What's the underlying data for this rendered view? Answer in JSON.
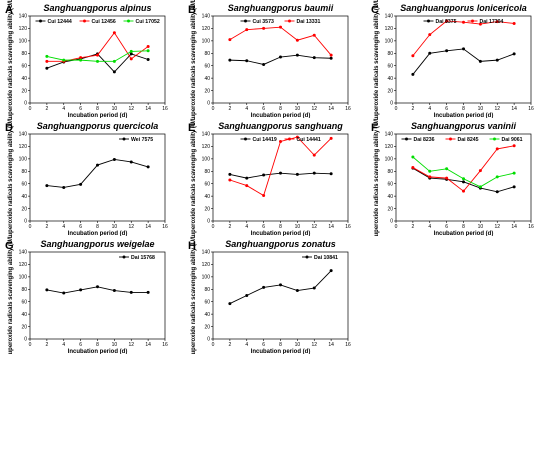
{
  "figure": {
    "background": "#ffffff"
  },
  "chart_data": [
    {
      "type": "line",
      "panel_label": "A",
      "title": "Sanghuangporus alpinus",
      "xlabel": "Incubation period (d)",
      "ylabel": "Superoxide radicals scavenging ability (U/L)",
      "xlim": [
        0,
        16
      ],
      "ylim": [
        0,
        140
      ],
      "xticks": [
        "0",
        "2",
        "4",
        "6",
        "8",
        "10",
        "12",
        "14",
        "16"
      ],
      "yticks": [
        "0",
        "20",
        "40",
        "60",
        "80",
        "100",
        "120",
        "140"
      ],
      "grid": false,
      "legend_position": "top",
      "x": [
        2,
        4,
        6,
        8,
        10,
        12,
        14
      ],
      "series": [
        {
          "name": "Cui 12444",
          "color": "#000000",
          "marker": "circle",
          "values": [
            56,
            66,
            71,
            79,
            50,
            79,
            70
          ]
        },
        {
          "name": "Cui 12456",
          "color": "#ff0000",
          "marker": "circle",
          "values": [
            67,
            67,
            73,
            77,
            113,
            71,
            91
          ]
        },
        {
          "name": "Cui 17052",
          "color": "#00dd00",
          "marker": "circle",
          "values": [
            75,
            69,
            69,
            67,
            67,
            83,
            84
          ]
        }
      ]
    },
    {
      "type": "line",
      "panel_label": "B",
      "title": "Sanghuangporus baumii",
      "xlabel": "Incubation period (d)",
      "ylabel": "Superoxide radicals scavenging ability (U/L)",
      "xlim": [
        0,
        16
      ],
      "ylim": [
        0,
        140
      ],
      "xticks": [
        "0",
        "2",
        "4",
        "6",
        "8",
        "10",
        "12",
        "14",
        "16"
      ],
      "yticks": [
        "0",
        "20",
        "40",
        "60",
        "80",
        "100",
        "120",
        "140"
      ],
      "grid": false,
      "legend_position": "top",
      "x": [
        2,
        4,
        6,
        8,
        10,
        12,
        14
      ],
      "series": [
        {
          "name": "Cui 3573",
          "color": "#000000",
          "marker": "circle",
          "values": [
            69,
            68,
            62,
            74,
            77,
            73,
            72
          ]
        },
        {
          "name": "Dai 13331",
          "color": "#ff0000",
          "marker": "circle",
          "values": [
            102,
            118,
            120,
            122,
            101,
            109,
            77
          ]
        }
      ]
    },
    {
      "type": "line",
      "panel_label": "C",
      "title": "Sanghuangporus lonicericola",
      "xlabel": "Incubation period (d)",
      "ylabel": "Superoxide radicals scavenging ability (U/L)",
      "xlim": [
        0,
        16
      ],
      "ylim": [
        0,
        140
      ],
      "xticks": [
        "0",
        "2",
        "4",
        "6",
        "8",
        "10",
        "12",
        "14",
        "16"
      ],
      "yticks": [
        "0",
        "20",
        "40",
        "60",
        "80",
        "100",
        "120",
        "140"
      ],
      "grid": false,
      "legend_position": "top",
      "x": [
        2,
        4,
        6,
        8,
        10,
        12,
        14
      ],
      "series": [
        {
          "name": "Dai 8375",
          "color": "#000000",
          "marker": "circle",
          "values": [
            46,
            80,
            84,
            87,
            67,
            69,
            79
          ]
        },
        {
          "name": "Dai 17304",
          "color": "#ff0000",
          "marker": "circle",
          "values": [
            76,
            110,
            132,
            130,
            127,
            131,
            128
          ]
        }
      ]
    },
    {
      "type": "line",
      "panel_label": "D",
      "title": "Sanghuangporus quercicola",
      "xlabel": "Incubation period (d)",
      "ylabel": "Superoxide radicals scavenging ability (U/L)",
      "xlim": [
        0,
        16
      ],
      "ylim": [
        0,
        140
      ],
      "xticks": [
        "0",
        "2",
        "4",
        "6",
        "8",
        "10",
        "12",
        "14",
        "16"
      ],
      "yticks": [
        "0",
        "20",
        "40",
        "60",
        "80",
        "100",
        "120",
        "140"
      ],
      "grid": false,
      "legend_position": "top",
      "x": [
        2,
        4,
        6,
        8,
        10,
        12,
        14
      ],
      "series": [
        {
          "name": "Wei 7575",
          "color": "#000000",
          "marker": "circle",
          "values": [
            57,
            54,
            59,
            90,
            99,
            95,
            87
          ]
        }
      ]
    },
    {
      "type": "line",
      "panel_label": "E",
      "title": "Sanghuangporus sanghuang",
      "xlabel": "Incubation period (d)",
      "ylabel": "Superoxide radicals scavenging ability (U/L)",
      "xlim": [
        0,
        16
      ],
      "ylim": [
        0,
        140
      ],
      "xticks": [
        "0",
        "2",
        "4",
        "6",
        "8",
        "10",
        "12",
        "14",
        "16"
      ],
      "yticks": [
        "0",
        "20",
        "40",
        "60",
        "80",
        "100",
        "120",
        "140"
      ],
      "grid": false,
      "legend_position": "top",
      "x": [
        2,
        4,
        6,
        8,
        10,
        12,
        14
      ],
      "series": [
        {
          "name": "Cui 14419",
          "color": "#000000",
          "marker": "circle",
          "values": [
            75,
            69,
            74,
            77,
            75,
            77,
            76
          ]
        },
        {
          "name": "Cui 14441",
          "color": "#ff0000",
          "marker": "circle",
          "values": [
            66,
            57,
            41,
            128,
            135,
            106,
            133
          ]
        }
      ]
    },
    {
      "type": "line",
      "panel_label": "F",
      "title": "Sanghuangporus vaninii",
      "xlabel": "Incubation period (d)",
      "ylabel": "Superoxide radicals scavenging ability (U/L)",
      "xlim": [
        0,
        16
      ],
      "ylim": [
        0,
        140
      ],
      "xticks": [
        "0",
        "2",
        "4",
        "6",
        "8",
        "10",
        "12",
        "14",
        "16"
      ],
      "yticks": [
        "0",
        "20",
        "40",
        "60",
        "80",
        "100",
        "120",
        "140"
      ],
      "grid": false,
      "legend_position": "top",
      "x": [
        2,
        4,
        6,
        8,
        10,
        12,
        14
      ],
      "series": [
        {
          "name": "Dai 8236",
          "color": "#000000",
          "marker": "circle",
          "values": [
            85,
            69,
            67,
            63,
            53,
            47,
            55
          ]
        },
        {
          "name": "Dai 8245",
          "color": "#ff0000",
          "marker": "circle",
          "values": [
            86,
            71,
            69,
            48,
            81,
            116,
            121
          ]
        },
        {
          "name": "Dai 9061",
          "color": "#00dd00",
          "marker": "circle",
          "values": [
            103,
            80,
            84,
            68,
            55,
            71,
            77
          ]
        }
      ]
    },
    {
      "type": "line",
      "panel_label": "G",
      "title": "Sanghuangporus weigelae",
      "xlabel": "Incubation period (d)",
      "ylabel": "Superoxide radicals scavenging ability (U/L)",
      "xlim": [
        0,
        16
      ],
      "ylim": [
        0,
        140
      ],
      "xticks": [
        "0",
        "2",
        "4",
        "6",
        "8",
        "10",
        "12",
        "14",
        "16"
      ],
      "yticks": [
        "0",
        "20",
        "40",
        "60",
        "80",
        "100",
        "120",
        "140"
      ],
      "grid": false,
      "legend_position": "top",
      "x": [
        2,
        4,
        6,
        8,
        10,
        12,
        14
      ],
      "series": [
        {
          "name": "Dai 15768",
          "color": "#000000",
          "marker": "circle",
          "values": [
            79,
            74,
            79,
            84,
            78,
            75,
            75
          ]
        }
      ]
    },
    {
      "type": "line",
      "panel_label": "H",
      "title": "Sanghuangporus zonatus",
      "xlabel": "Incubation period (d)",
      "ylabel": "Superoxide radicals scavenging ability (U/L)",
      "xlim": [
        0,
        16
      ],
      "ylim": [
        0,
        140
      ],
      "xticks": [
        "0",
        "2",
        "4",
        "6",
        "8",
        "10",
        "12",
        "14",
        "16"
      ],
      "yticks": [
        "0",
        "20",
        "40",
        "60",
        "80",
        "100",
        "120",
        "140"
      ],
      "grid": false,
      "legend_position": "top",
      "x": [
        2,
        4,
        6,
        8,
        10,
        12,
        14
      ],
      "series": [
        {
          "name": "Dai 10841",
          "color": "#000000",
          "marker": "circle",
          "values": [
            57,
            70,
            83,
            87,
            78,
            82,
            110
          ]
        }
      ]
    }
  ]
}
